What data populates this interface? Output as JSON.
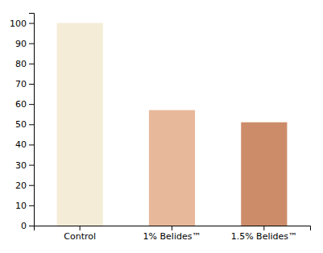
{
  "chart_data": {
    "type": "bar",
    "categories": [
      "Control",
      "1% Belides™",
      "1.5% Belides™"
    ],
    "values": [
      100,
      57,
      51
    ],
    "colors": [
      "#f5ecd7",
      "#e8b89a",
      "#cc8c6a"
    ],
    "ylim": [
      0,
      105
    ],
    "yticks": [
      0,
      10,
      20,
      30,
      40,
      50,
      60,
      70,
      80,
      90,
      100
    ],
    "grid": false
  }
}
